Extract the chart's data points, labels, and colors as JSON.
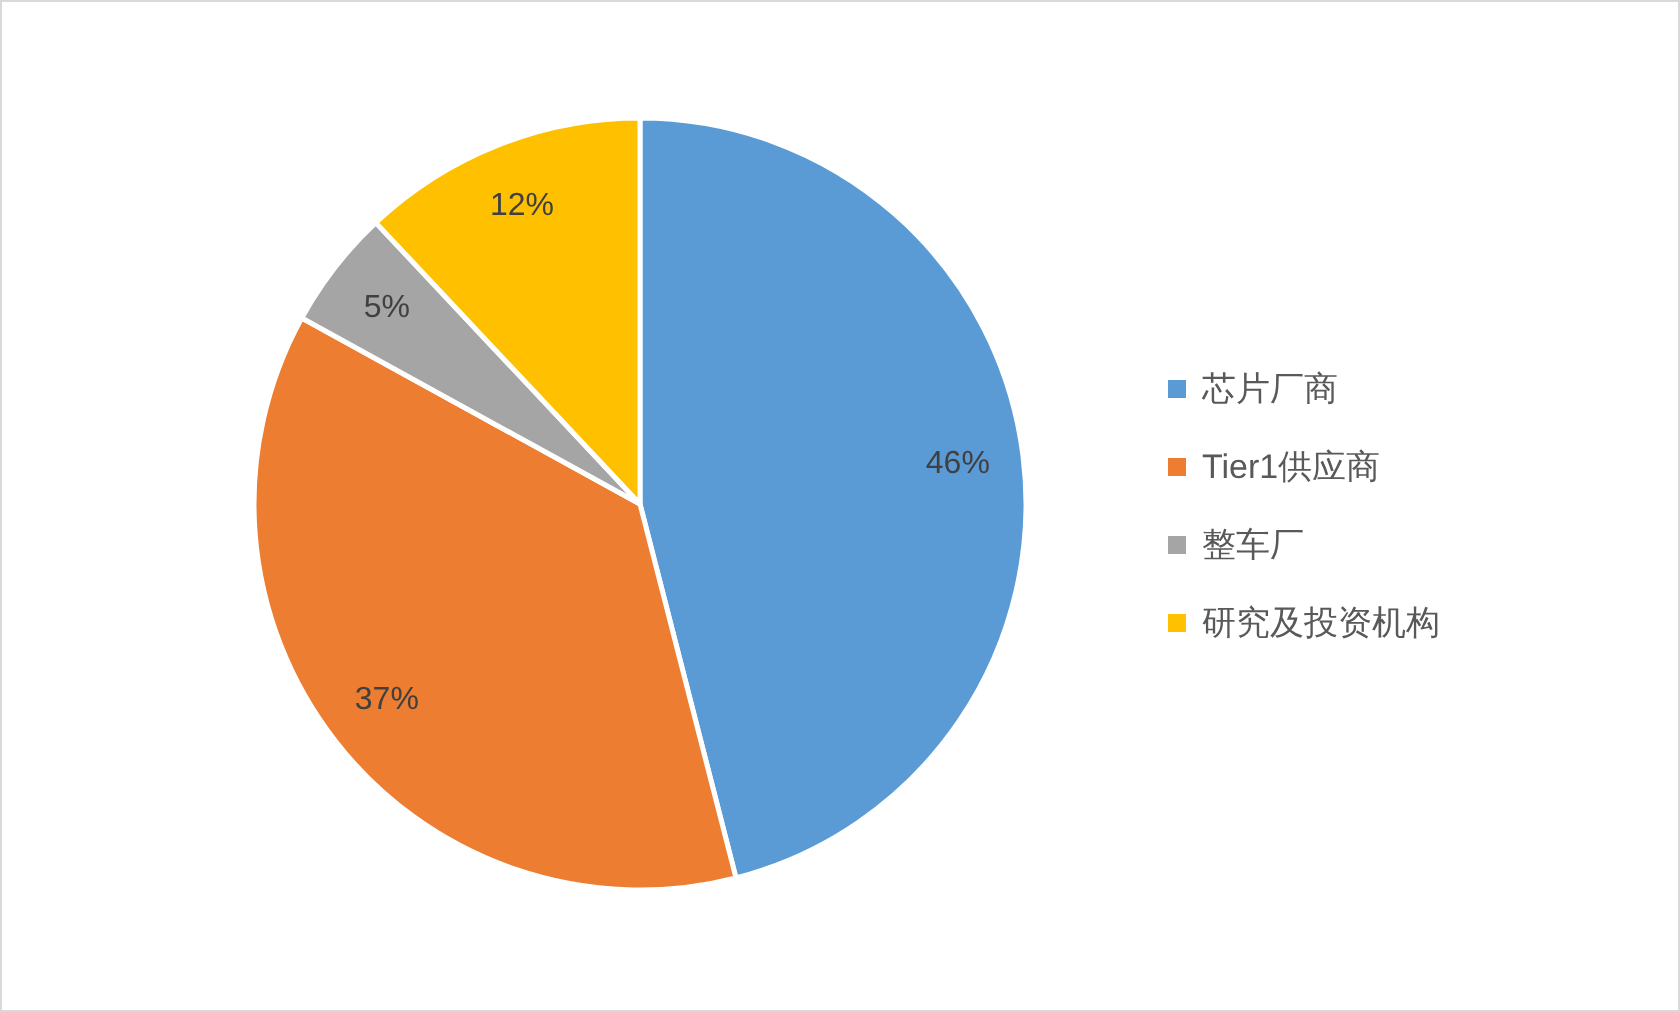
{
  "chart_data": {
    "type": "pie",
    "categories": [
      "芯片厂商",
      "Tier1供应商",
      "整车厂",
      "研究及投资机构"
    ],
    "values": [
      46,
      37,
      5,
      12
    ],
    "colors": [
      "#5b9bd5",
      "#ed7d31",
      "#a5a5a5",
      "#ffc000"
    ],
    "value_labels": [
      "46%",
      "37%",
      "5%",
      "12%"
    ],
    "legend": "right"
  }
}
